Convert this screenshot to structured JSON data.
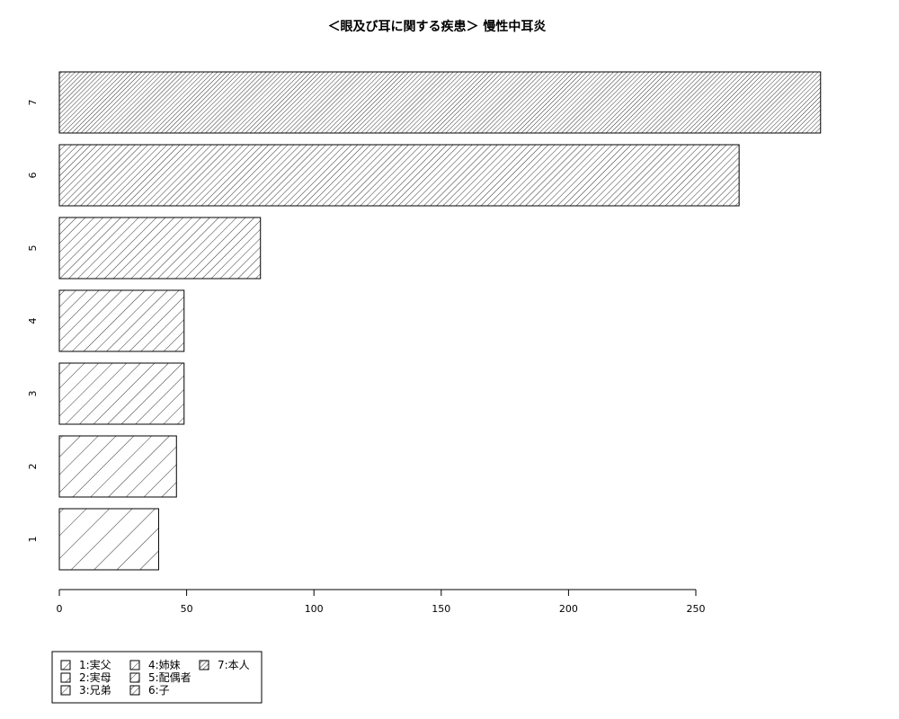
{
  "chart_data": {
    "type": "bar",
    "orientation": "horizontal",
    "title": "＜眼及び耳に関する疾患＞ 慢性中耳炎",
    "xlabel": "",
    "ylabel": "",
    "categories": [
      "1",
      "2",
      "3",
      "4",
      "5",
      "6",
      "7"
    ],
    "values": [
      39,
      46,
      49,
      49,
      79,
      267,
      299
    ],
    "xlim": [
      0,
      299
    ],
    "x_ticks": [
      "0",
      "50",
      "100",
      "150",
      "200",
      "250"
    ],
    "grid": false,
    "fill": "diagonal hatching, density increasing from 1 to 7",
    "legend": {
      "placement": "bottom-left",
      "entries": [
        "1:実父",
        "2:実母",
        "3:兄弟",
        "4:姉妹",
        "5:配偶者",
        "6:子",
        "7:本人"
      ]
    },
    "colors": {
      "bar_fill": "#ffffff",
      "stroke": "#000000"
    }
  }
}
